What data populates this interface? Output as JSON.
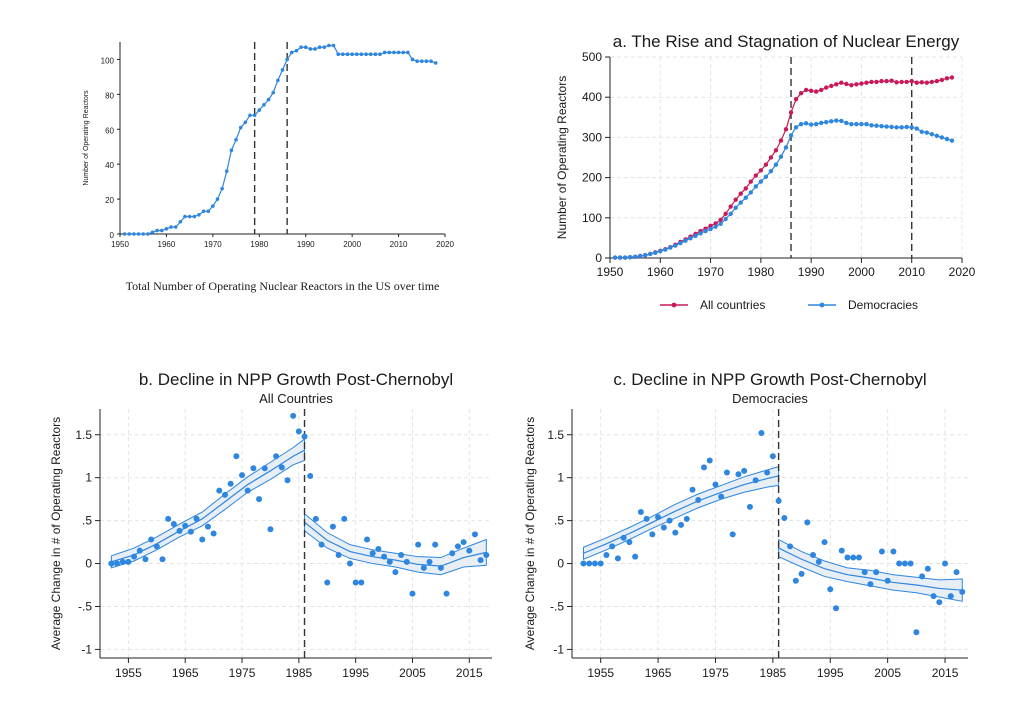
{
  "colors": {
    "blue": "#2e86de",
    "crimson": "#c8195a",
    "band_fill": "#e8eef5",
    "grid": "#e4e4e4",
    "dash": "#333333"
  },
  "chart_data": [
    {
      "id": "us",
      "type": "line",
      "title": "",
      "caption": "Total Number of Operating Nuclear Reactors in the US over time",
      "xlabel": "",
      "ylabel": "Number of Operating Reactors",
      "xlim": [
        1950,
        2020
      ],
      "ylim": [
        0,
        110
      ],
      "xticks": [
        1950,
        1960,
        1970,
        1980,
        1990,
        2000,
        2010,
        2020
      ],
      "yticks": [
        0,
        20,
        40,
        60,
        80,
        100
      ],
      "grid": false,
      "vlines": [
        1979,
        1986
      ],
      "series": [
        {
          "color_key": "blue",
          "x": [
            1951,
            1952,
            1953,
            1954,
            1955,
            1956,
            1957,
            1958,
            1959,
            1960,
            1961,
            1962,
            1963,
            1964,
            1965,
            1966,
            1967,
            1968,
            1969,
            1970,
            1971,
            1972,
            1973,
            1974,
            1975,
            1976,
            1977,
            1978,
            1979,
            1980,
            1981,
            1982,
            1983,
            1984,
            1985,
            1986,
            1987,
            1988,
            1989,
            1990,
            1991,
            1992,
            1993,
            1994,
            1995,
            1996,
            1997,
            1998,
            1999,
            2000,
            2001,
            2002,
            2003,
            2004,
            2005,
            2006,
            2007,
            2008,
            2009,
            2010,
            2011,
            2012,
            2013,
            2014,
            2015,
            2016,
            2017,
            2018
          ],
          "y": [
            0,
            0,
            0,
            0,
            0,
            0,
            1,
            2,
            2,
            3,
            4,
            4,
            7,
            10,
            10,
            10,
            11,
            13,
            13,
            16,
            20,
            26,
            36,
            48,
            54,
            61,
            64,
            68,
            68,
            71,
            74,
            77,
            81,
            88,
            94,
            100,
            104,
            105,
            107,
            107,
            106,
            106,
            107,
            107,
            108,
            108,
            103,
            103,
            103,
            103,
            103,
            103,
            103,
            103,
            103,
            103,
            104,
            104,
            104,
            104,
            104,
            104,
            100,
            99,
            99,
            99,
            99,
            98
          ]
        }
      ]
    },
    {
      "id": "a",
      "type": "line",
      "title": "a. The Rise and Stagnation of Nuclear Energy",
      "xlabel": "",
      "ylabel": "Number of Operating Reactors",
      "xlim": [
        1950,
        2020
      ],
      "ylim": [
        0,
        500
      ],
      "xticks": [
        1950,
        1960,
        1970,
        1980,
        1990,
        2000,
        2010,
        2020
      ],
      "yticks": [
        0,
        100,
        200,
        300,
        400,
        500
      ],
      "grid": true,
      "vlines": [
        1986,
        2010
      ],
      "legend_position": "bottom",
      "series": [
        {
          "name": "All countries",
          "color_key": "crimson",
          "x": [
            1951,
            1952,
            1953,
            1954,
            1955,
            1956,
            1957,
            1958,
            1959,
            1960,
            1961,
            1962,
            1963,
            1964,
            1965,
            1966,
            1967,
            1968,
            1969,
            1970,
            1971,
            1972,
            1973,
            1974,
            1975,
            1976,
            1977,
            1978,
            1979,
            1980,
            1981,
            1982,
            1983,
            1984,
            1985,
            1986,
            1987,
            1988,
            1989,
            1990,
            1991,
            1992,
            1993,
            1994,
            1995,
            1996,
            1997,
            1998,
            1999,
            2000,
            2001,
            2002,
            2003,
            2004,
            2005,
            2006,
            2007,
            2008,
            2009,
            2010,
            2011,
            2012,
            2013,
            2014,
            2015,
            2016,
            2017,
            2018
          ],
          "y": [
            1,
            1,
            1,
            2,
            3,
            5,
            7,
            10,
            14,
            18,
            22,
            27,
            33,
            40,
            46,
            53,
            60,
            67,
            73,
            80,
            86,
            95,
            110,
            128,
            145,
            160,
            173,
            190,
            205,
            218,
            232,
            250,
            268,
            292,
            320,
            362,
            395,
            410,
            418,
            416,
            414,
            418,
            424,
            428,
            432,
            436,
            433,
            430,
            432,
            434,
            436,
            438,
            438,
            440,
            440,
            441,
            437,
            438,
            438,
            440,
            436,
            437,
            436,
            438,
            440,
            443,
            447,
            449
          ]
        },
        {
          "name": "Democracies",
          "color_key": "blue",
          "x": [
            1951,
            1952,
            1953,
            1954,
            1955,
            1956,
            1957,
            1958,
            1959,
            1960,
            1961,
            1962,
            1963,
            1964,
            1965,
            1966,
            1967,
            1968,
            1969,
            1970,
            1971,
            1972,
            1973,
            1974,
            1975,
            1976,
            1977,
            1978,
            1979,
            1980,
            1981,
            1982,
            1983,
            1984,
            1985,
            1986,
            1987,
            1988,
            1989,
            1990,
            1991,
            1992,
            1993,
            1994,
            1995,
            1996,
            1997,
            1998,
            1999,
            2000,
            2001,
            2002,
            2003,
            2004,
            2005,
            2006,
            2007,
            2008,
            2009,
            2010,
            2011,
            2012,
            2013,
            2014,
            2015,
            2016,
            2017,
            2018
          ],
          "y": [
            1,
            1,
            1,
            2,
            3,
            5,
            7,
            10,
            13,
            17,
            21,
            26,
            31,
            37,
            43,
            49,
            55,
            61,
            67,
            72,
            78,
            85,
            97,
            110,
            125,
            138,
            150,
            163,
            178,
            190,
            202,
            216,
            232,
            252,
            275,
            305,
            325,
            333,
            335,
            332,
            333,
            336,
            338,
            340,
            342,
            341,
            336,
            333,
            333,
            333,
            333,
            330,
            329,
            328,
            327,
            326,
            325,
            325,
            326,
            325,
            322,
            314,
            312,
            308,
            304,
            300,
            296,
            292
          ]
        }
      ]
    },
    {
      "id": "b",
      "type": "scatter",
      "title": "b. Decline in NPP Growth Post-Chernobyl",
      "subtitle": "All Countries",
      "xlabel": "",
      "ylabel": "Average Change in # of Operating Reactors",
      "xlim": [
        1950,
        2019
      ],
      "ylim": [
        -1.1,
        1.8
      ],
      "xticks": [
        1955,
        1965,
        1975,
        1985,
        1995,
        2005,
        2015
      ],
      "yticks": [
        -1,
        -0.5,
        0,
        0.5,
        1,
        1.5
      ],
      "ytick_labels": [
        "-1",
        "-.5",
        "0",
        ".5",
        "1",
        "1.5"
      ],
      "grid": true,
      "vlines": [
        1986
      ],
      "points": {
        "x": [
          1952,
          1953,
          1954,
          1955,
          1956,
          1957,
          1958,
          1959,
          1960,
          1961,
          1962,
          1963,
          1964,
          1965,
          1966,
          1967,
          1968,
          1969,
          1970,
          1971,
          1972,
          1973,
          1974,
          1975,
          1976,
          1977,
          1978,
          1979,
          1980,
          1981,
          1982,
          1983,
          1984,
          1985,
          1986,
          1987,
          1988,
          1989,
          1990,
          1991,
          1992,
          1993,
          1994,
          1995,
          1996,
          1997,
          1998,
          1999,
          2000,
          2001,
          2002,
          2003,
          2004,
          2005,
          2006,
          2007,
          2008,
          2009,
          2010,
          2011,
          2012,
          2013,
          2014,
          2015,
          2016,
          2017,
          2018
        ],
        "y": [
          0,
          0,
          0.02,
          0.02,
          0.08,
          0.15,
          0.05,
          0.28,
          0.2,
          0.05,
          0.52,
          0.46,
          0.38,
          0.44,
          0.37,
          0.52,
          0.28,
          0.43,
          0.35,
          0.85,
          0.8,
          0.93,
          1.25,
          1.03,
          0.85,
          1.11,
          0.75,
          1.11,
          0.4,
          1.25,
          1.12,
          0.97,
          1.72,
          1.54,
          1.48,
          1.02,
          0.52,
          0.22,
          -0.22,
          0.43,
          0.1,
          0.52,
          0,
          -0.22,
          -0.22,
          0.28,
          0.12,
          0.17,
          0.08,
          0.02,
          -0.1,
          0.1,
          0.02,
          -0.35,
          0.22,
          -0.05,
          0.02,
          0.22,
          -0.05,
          -0.35,
          0.12,
          0.2,
          0.25,
          0.15,
          0.34,
          0.04,
          0.1
        ]
      },
      "fit_pre": {
        "x": [
          1952,
          1956,
          1960,
          1964,
          1968,
          1972,
          1976,
          1980,
          1984,
          1986
        ],
        "y": [
          0.02,
          0.1,
          0.23,
          0.38,
          0.52,
          0.72,
          0.92,
          1.08,
          1.25,
          1.32
        ],
        "lo": [
          -0.05,
          0.03,
          0.16,
          0.31,
          0.44,
          0.63,
          0.83,
          0.98,
          1.15,
          1.2
        ],
        "hi": [
          0.09,
          0.18,
          0.31,
          0.46,
          0.6,
          0.81,
          1.01,
          1.18,
          1.35,
          1.45
        ]
      },
      "fit_post": {
        "x": [
          1986,
          1990,
          1994,
          1998,
          2002,
          2006,
          2010,
          2014,
          2018
        ],
        "y": [
          0.48,
          0.27,
          0.14,
          0.08,
          0.04,
          -0.01,
          -0.03,
          0.07,
          0.13
        ],
        "lo": [
          0.38,
          0.18,
          0.06,
          0,
          -0.04,
          -0.1,
          -0.13,
          -0.04,
          -0.02
        ],
        "hi": [
          0.58,
          0.36,
          0.22,
          0.16,
          0.12,
          0.08,
          0.07,
          0.18,
          0.28
        ]
      }
    },
    {
      "id": "c",
      "type": "scatter",
      "title": "c. Decline in NPP Growth Post-Chernobyl",
      "subtitle": "Democracies",
      "xlabel": "",
      "ylabel": "Average Change in # of Operating Reactors",
      "xlim": [
        1950,
        2019
      ],
      "ylim": [
        -1.1,
        1.8
      ],
      "xticks": [
        1955,
        1965,
        1975,
        1985,
        1995,
        2005,
        2015
      ],
      "yticks": [
        -1,
        -0.5,
        0,
        0.5,
        1,
        1.5
      ],
      "ytick_labels": [
        "-1",
        "-.5",
        "0",
        ".5",
        "1",
        "1.5"
      ],
      "grid": true,
      "vlines": [
        1986
      ],
      "points": {
        "x": [
          1952,
          1953,
          1954,
          1955,
          1956,
          1957,
          1958,
          1959,
          1960,
          1961,
          1962,
          1963,
          1964,
          1965,
          1966,
          1967,
          1968,
          1969,
          1970,
          1971,
          1972,
          1973,
          1974,
          1975,
          1976,
          1977,
          1978,
          1979,
          1980,
          1981,
          1982,
          1983,
          1984,
          1985,
          1986,
          1987,
          1988,
          1989,
          1990,
          1991,
          1992,
          1993,
          1994,
          1995,
          1996,
          1997,
          1998,
          1999,
          2000,
          2001,
          2002,
          2003,
          2004,
          2005,
          2006,
          2007,
          2008,
          2009,
          2010,
          2011,
          2012,
          2013,
          2014,
          2015,
          2016,
          2017,
          2018
        ],
        "y": [
          0,
          0,
          0,
          0,
          0.1,
          0.2,
          0.06,
          0.3,
          0.25,
          0.08,
          0.6,
          0.52,
          0.34,
          0.54,
          0.42,
          0.5,
          0.36,
          0.45,
          0.52,
          0.86,
          0.74,
          1.12,
          1.2,
          0.92,
          0.78,
          1.06,
          0.34,
          1.04,
          1.08,
          0.66,
          0.97,
          1.52,
          1.06,
          1.25,
          0.73,
          0.53,
          0.2,
          -0.2,
          -0.12,
          0.48,
          0.1,
          0.02,
          0.25,
          -0.3,
          -0.52,
          0.15,
          0.07,
          0.07,
          0.07,
          -0.1,
          -0.24,
          -0.1,
          0.14,
          -0.2,
          0.14,
          0,
          0,
          0,
          -0.8,
          -0.15,
          -0.06,
          -0.38,
          -0.45,
          0,
          -0.38,
          -0.1,
          -0.33
        ]
      },
      "fit_pre": {
        "x": [
          1952,
          1956,
          1960,
          1964,
          1968,
          1972,
          1976,
          1980,
          1984,
          1986
        ],
        "y": [
          0.12,
          0.23,
          0.35,
          0.48,
          0.61,
          0.73,
          0.83,
          0.92,
          0.99,
          1.02
        ],
        "lo": [
          0.05,
          0.16,
          0.28,
          0.41,
          0.53,
          0.65,
          0.75,
          0.83,
          0.89,
          0.91
        ],
        "hi": [
          0.19,
          0.3,
          0.42,
          0.55,
          0.69,
          0.81,
          0.91,
          1.01,
          1.09,
          1.13
        ]
      },
      "fit_post": {
        "x": [
          1986,
          1990,
          1994,
          1998,
          2002,
          2006,
          2010,
          2014,
          2018
        ],
        "y": [
          0.18,
          0.05,
          -0.06,
          -0.13,
          -0.17,
          -0.22,
          -0.25,
          -0.29,
          -0.31
        ],
        "lo": [
          0.08,
          -0.04,
          -0.15,
          -0.21,
          -0.26,
          -0.31,
          -0.34,
          -0.39,
          -0.44
        ],
        "hi": [
          0.28,
          0.14,
          0.03,
          -0.05,
          -0.08,
          -0.13,
          -0.16,
          -0.19,
          -0.18
        ]
      }
    }
  ]
}
